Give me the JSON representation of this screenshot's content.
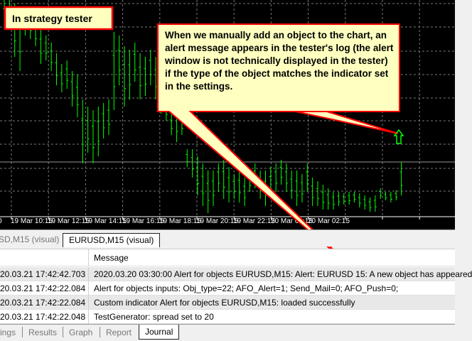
{
  "chart": {
    "time_labels": [
      "0",
      "19 Mar 10:15",
      "19 Mar 12:15",
      "19 Mar 14:15",
      "19 Mar 16:15",
      "19 Mar 18:15",
      "19 Mar 20:15",
      "19 Mar 22:15",
      "20 Mar 00:15",
      "20 Mar 02:15"
    ],
    "bar_color": "#00ff00",
    "signal_icon": "up-arrow-icon"
  },
  "callouts": {
    "label": "In strategy tester",
    "note": "When we manually add an object to the chart, an alert message appears in the tester's log (the alert window is not technically displayed in the tester) if the type of the object matches the indicator set in the settings.",
    "fill": "#ffffc0",
    "border": "#ff0000"
  },
  "chart_tabs": [
    "SD,M15 (visual)",
    "EURUSD,M15 (visual)"
  ],
  "journal": {
    "header": {
      "time": "",
      "message": "Message"
    },
    "rows": [
      {
        "time": "20.03.21 17:42:42.703",
        "message": "2020.03.20 03:30:00  Alert for objects EURUSD,M15: Alert: EURUSD 15: A new object has appeared"
      },
      {
        "time": "20.03.21 17:42:22.084",
        "message": "Alert for objects inputs: Obj_type=22; AFO_Alert=1; Send_Mail=0; AFO_Push=0;"
      },
      {
        "time": "20.03.21 17:42:22.084",
        "message": "Custom indicator Alert for objects EURUSD,M15: loaded successfully"
      },
      {
        "time": "20.03.21 17:42:22.048",
        "message": "TestGenerator: spread set to 20"
      }
    ]
  },
  "bottom_tabs": [
    "ings",
    "Results",
    "Graph",
    "Report",
    "Journal"
  ]
}
